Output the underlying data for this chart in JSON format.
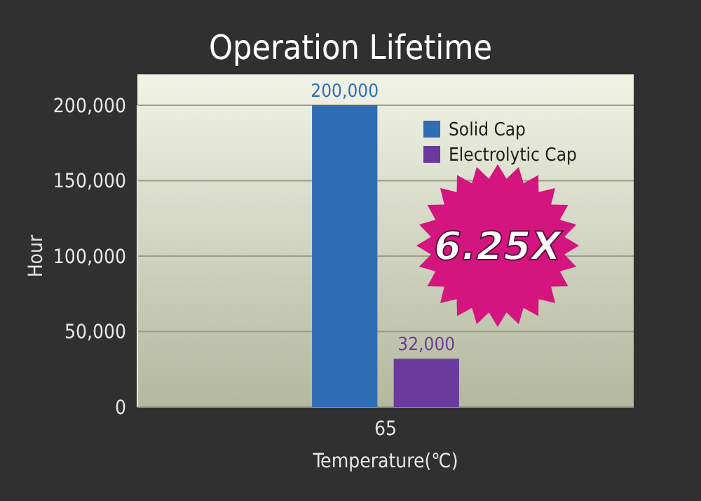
{
  "chart_data": {
    "type": "bar",
    "title": "Operation Lifetime",
    "xlabel": "Temperature(℃)",
    "ylabel": "Hour",
    "categories": [
      "65"
    ],
    "series": [
      {
        "name": "Solid Cap",
        "color": "#2f6db5",
        "values": [
          200000
        ],
        "value_labels": [
          "200,000"
        ]
      },
      {
        "name": "Electrolytic Cap",
        "color": "#6a3a9c",
        "values": [
          32000
        ],
        "value_labels": [
          "32,000"
        ]
      }
    ],
    "ylim": [
      0,
      200000
    ],
    "yticks": [
      {
        "value": 0,
        "label": "0"
      },
      {
        "value": 50000,
        "label": "50,000"
      },
      {
        "value": 100000,
        "label": "100,000"
      },
      {
        "value": 150000,
        "label": "150,000"
      },
      {
        "value": 200000,
        "label": "200,000"
      }
    ],
    "grid": "y",
    "legend": "top right",
    "annotations": [
      "6.25X"
    ]
  }
}
